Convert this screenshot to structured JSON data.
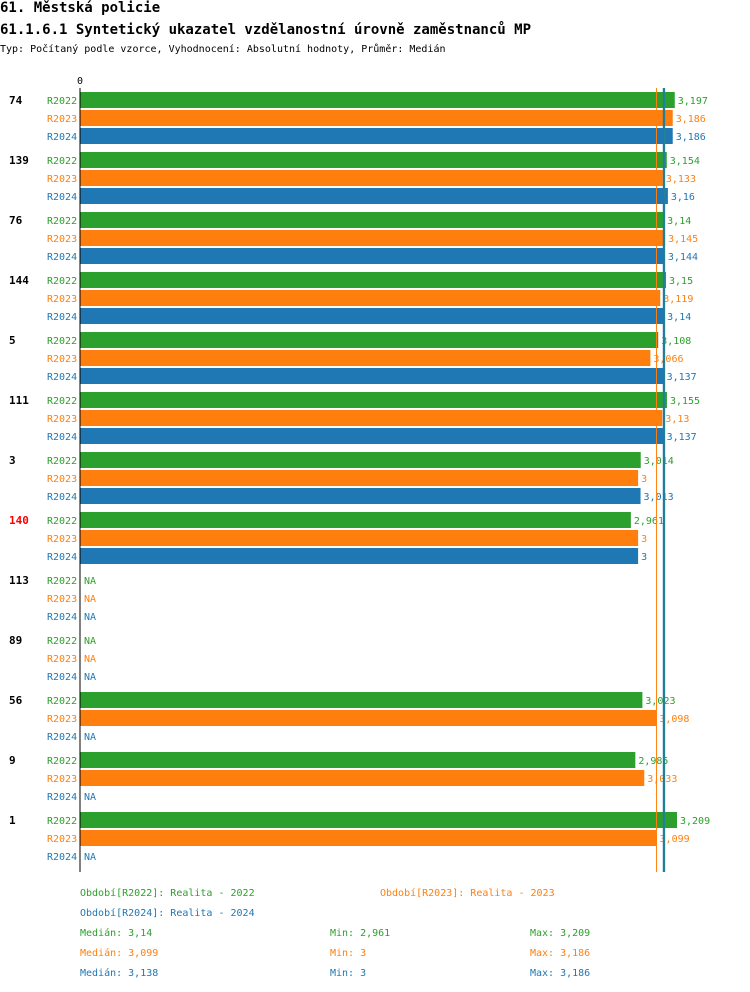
{
  "header": {
    "title": "61. Městská policie",
    "subtitle": "61.1.6.1 Syntetický ukazatel vzdělanostní úrovně zaměstnanců MP",
    "description": "Typ: Počítaný podle vzorce, Vyhodnocení: Absolutní hodnoty, Průměr: Medián"
  },
  "colors": {
    "R2022": "#2ca02c",
    "R2023": "#ff7f0e",
    "R2024": "#1f77b4",
    "highlight": "#ff0000",
    "text": "#000000"
  },
  "chart_data": {
    "type": "bar",
    "orientation": "horizontal",
    "axis_zero_label": "0",
    "categories": [
      "74",
      "139",
      "76",
      "144",
      "5",
      "111",
      "3",
      "140",
      "113",
      "89",
      "56",
      "9",
      "1"
    ],
    "highlighted_category": "140",
    "series": [
      {
        "name": "R2022",
        "values": [
          3.197,
          3.154,
          3.14,
          3.15,
          3.108,
          3.155,
          3.014,
          2.961,
          null,
          null,
          3.023,
          2.985,
          3.209
        ],
        "labels": [
          "3,197",
          "3,154",
          "3,14",
          "3,15",
          "3,108",
          "3,155",
          "3,014",
          "2,961",
          "NA",
          "NA",
          "3,023",
          "2,985",
          "3,209"
        ]
      },
      {
        "name": "R2023",
        "values": [
          3.186,
          3.133,
          3.145,
          3.119,
          3.066,
          3.13,
          3,
          3,
          null,
          null,
          3.098,
          3.033,
          3.099
        ],
        "labels": [
          "3,186",
          "3,133",
          "3,145",
          "3,119",
          "3,066",
          "3,13",
          "3",
          "3",
          "NA",
          "NA",
          "3,098",
          "3,033",
          "3,099"
        ]
      },
      {
        "name": "R2024",
        "values": [
          3.186,
          3.16,
          3.144,
          3.14,
          3.137,
          3.137,
          3.013,
          3,
          null,
          null,
          null,
          null,
          null
        ],
        "labels": [
          "3,186",
          "3,16",
          "3,144",
          "3,14",
          "3,137",
          "3,137",
          "3,013",
          "3",
          "NA",
          "NA",
          "NA",
          "NA",
          "NA"
        ]
      }
    ],
    "median_lines": [
      {
        "series": "R2022",
        "value": 3.14
      },
      {
        "series": "R2023",
        "value": 3.099
      },
      {
        "series": "R2024",
        "value": 3.138
      }
    ],
    "xlim": [
      0,
      3.209
    ]
  },
  "legend": {
    "entries": [
      {
        "series": "R2022",
        "label": "Období[R2022]: Realita - 2022"
      },
      {
        "series": "R2023",
        "label": "Období[R2023]: Realita - 2023"
      },
      {
        "series": "R2024",
        "label": "Období[R2024]: Realita - 2024"
      }
    ],
    "stats": [
      {
        "series": "R2022",
        "median": "Medián: 3,14",
        "min": "Min: 2,961",
        "max": "Max: 3,209"
      },
      {
        "series": "R2023",
        "median": "Medián: 3,099",
        "min": "Min: 3",
        "max": "Max: 3,186"
      },
      {
        "series": "R2024",
        "median": "Medián: 3,138",
        "min": "Min: 3",
        "max": "Max: 3,186"
      }
    ]
  }
}
